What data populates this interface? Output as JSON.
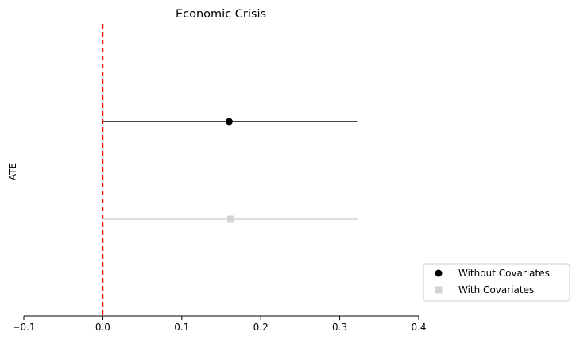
{
  "chart_data": {
    "type": "scatter",
    "title": "Economic Crisis",
    "xlabel": "",
    "ylabel": "ATE",
    "xlim": [
      -0.1,
      0.4
    ],
    "x_ticks": [
      -0.1,
      0.0,
      0.1,
      0.2,
      0.3,
      0.4
    ],
    "x_tick_labels": [
      "−0.1",
      "0.0",
      "0.1",
      "0.2",
      "0.3",
      "0.4"
    ],
    "reference_line": {
      "x": 0,
      "color": "#ff0000",
      "style": "dashed"
    },
    "grid": false,
    "legend_position": "lower-right, outside plot",
    "series": [
      {
        "name": "Without Covariates",
        "estimate": 0.16,
        "ci_low": 0.0,
        "ci_high": 0.322,
        "marker": "circle",
        "color": "#000000"
      },
      {
        "name": "With Covariates",
        "estimate": 0.162,
        "ci_low": 0.0,
        "ci_high": 0.323,
        "marker": "square",
        "color": "#d3d3d3"
      }
    ]
  }
}
